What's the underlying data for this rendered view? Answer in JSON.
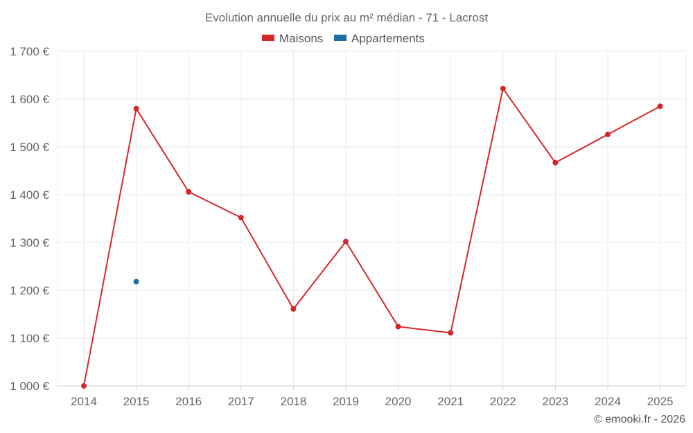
{
  "chart_data": {
    "type": "line",
    "title": "Evolution annuelle du prix au m² médian - 71 - Lacrost",
    "categories": [
      "2014",
      "2015",
      "2016",
      "2017",
      "2018",
      "2019",
      "2020",
      "2021",
      "2022",
      "2023",
      "2024",
      "2025"
    ],
    "ylim": [
      1000,
      1700
    ],
    "yticks": [
      1000,
      1100,
      1200,
      1300,
      1400,
      1500,
      1600,
      1700
    ],
    "ytick_labels": [
      "1 000 €",
      "1 100 €",
      "1 200 €",
      "1 300 €",
      "1 400 €",
      "1 500 €",
      "1 600 €",
      "1 700 €"
    ],
    "series": [
      {
        "name": "Maisons",
        "color": "#d62728",
        "values": [
          1000,
          1580,
          1406,
          1352,
          1161,
          1302,
          1124,
          1111,
          1622,
          1467,
          1526,
          1585
        ]
      },
      {
        "name": "Appartements",
        "color": "#1f6fa3",
        "values": [
          null,
          1218,
          null,
          null,
          null,
          null,
          null,
          null,
          null,
          null,
          null,
          null
        ]
      }
    ],
    "grid": true,
    "legend": "top-center"
  },
  "credit": "© emooki.fr - 2026"
}
